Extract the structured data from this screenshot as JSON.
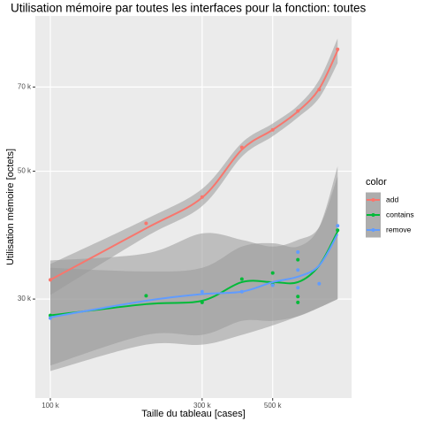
{
  "chart_data": {
    "type": "scatter_smooth",
    "title": "Utilisation mémoire par toutes les interfaces pour la fonction: toutes",
    "x_label": "Taille du tableau [cases]",
    "y_label": "Utilisation mémoire [octets]",
    "x_log": true,
    "y_log": true,
    "grid": true,
    "xlim": [
      89700,
      885000
    ],
    "ylim": [
      20200,
      93000
    ],
    "xticks": [
      {
        "value": 100000,
        "label": "100 k"
      },
      {
        "value": 300000,
        "label": "300 k"
      },
      {
        "value": 500000,
        "label": "500 k"
      }
    ],
    "yticks": [
      {
        "value": 30000,
        "label": "30 k"
      },
      {
        "value": 50000,
        "label": "50 k"
      },
      {
        "value": 70000,
        "label": "70 k"
      }
    ],
    "legend_title": "color",
    "legend": "right",
    "fit_x": [
      100000,
      200000,
      300000,
      400000,
      500000,
      600000,
      700000,
      800000
    ],
    "series": [
      {
        "name": "add",
        "color": "#F8766D",
        "x": [
          100000,
          200000,
          300000,
          400000,
          500000,
          600000,
          700000,
          800000
        ],
        "values": [
          32400,
          40600,
          45100,
          55000,
          59000,
          63600,
          69300,
          81400
        ],
        "fit_values": [
          32400,
          39800,
          45000,
          54500,
          59000,
          63500,
          69500,
          81000
        ],
        "fit_lower": [
          30500,
          38500,
          43500,
          53000,
          57500,
          62000,
          67000,
          77000
        ],
        "fit_upper": [
          34500,
          41300,
          46600,
          56000,
          60500,
          65000,
          72000,
          85000
        ]
      },
      {
        "name": "contains",
        "color": "#00BA38",
        "x": [
          100000,
          200000,
          300000,
          400000,
          500000,
          500000,
          600000,
          600000,
          600000,
          800000
        ],
        "values": [
          28100,
          30400,
          29600,
          32500,
          33300,
          31800,
          35100,
          30300,
          29600,
          39500
        ],
        "fit_values": [
          28100,
          29400,
          29800,
          32100,
          32100,
          32100,
          34300,
          39300
        ],
        "fit_lower": [
          23000,
          26000,
          26000,
          27500,
          27500,
          28000,
          29000,
          30000
        ],
        "fit_upper": [
          34000,
          33500,
          34000,
          37000,
          37500,
          37000,
          40000,
          51000
        ]
      },
      {
        "name": "remove",
        "color": "#619CFF",
        "x": [
          100000,
          300000,
          400000,
          500000,
          600000,
          600000,
          600000,
          700000,
          800000
        ],
        "values": [
          27800,
          30900,
          30900,
          31700,
          36200,
          33700,
          31400,
          31900,
          40200
        ],
        "fit_values": [
          27900,
          29800,
          30600,
          30900,
          32100,
          32800,
          34300,
          38900
        ],
        "fit_lower": [
          22500,
          25000,
          25000,
          26000,
          27000,
          28000,
          29000,
          30000
        ],
        "fit_upper": [
          35000,
          36000,
          39000,
          38000,
          37000,
          38000,
          40000,
          49000
        ]
      }
    ]
  }
}
